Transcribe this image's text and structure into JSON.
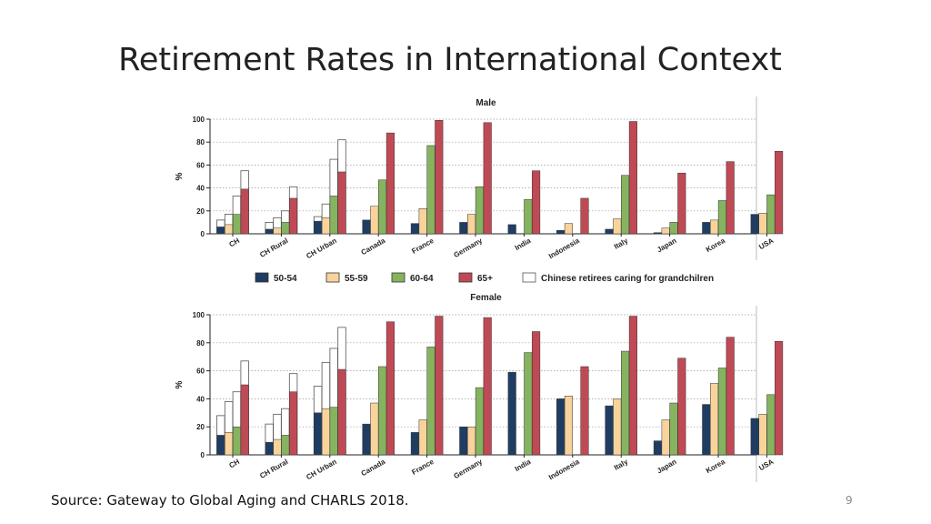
{
  "slide": {
    "title": "Retirement Rates in International Context",
    "source": "Source: Gateway to Global Aging and CHARLS 2018.",
    "page_number": "9"
  },
  "colors": {
    "50-54": "#1f3d63",
    "55-59": "#f8d39c",
    "60-64": "#86b35f",
    "65+": "#bf4a55",
    "caring": "#ffffff"
  },
  "legend": [
    {
      "key": "50-54",
      "label": "50-54"
    },
    {
      "key": "55-59",
      "label": "55-59"
    },
    {
      "key": "60-64",
      "label": "60-64"
    },
    {
      "key": "65+",
      "label": "65+"
    },
    {
      "key": "caring",
      "label": "Chinese retirees caring for grandchilren"
    }
  ],
  "chart_data": [
    {
      "type": "bar",
      "title": "Male",
      "ylabel": "%",
      "ylim": [
        0,
        100
      ],
      "yticks": [
        "0",
        "20",
        "40",
        "60",
        "80",
        "100"
      ],
      "grid": true,
      "categories": [
        "CH",
        "CH Rural",
        "CH Urban",
        "Canada",
        "France",
        "Germany",
        "India",
        "Indonesia",
        "Italy",
        "Japan",
        "Korea",
        "USA"
      ],
      "series": [
        {
          "name": "50-54",
          "values": [
            6,
            4,
            11,
            12,
            9,
            10,
            8,
            3,
            4,
            1,
            10,
            17
          ]
        },
        {
          "name": "55-59",
          "values": [
            8,
            5,
            14,
            24,
            22,
            17,
            0,
            9,
            13,
            5,
            12,
            18
          ]
        },
        {
          "name": "60-64",
          "values": [
            17,
            10,
            33,
            47,
            77,
            41,
            30,
            0,
            51,
            10,
            29,
            34
          ]
        },
        {
          "name": "65+",
          "values": [
            39,
            31,
            54,
            88,
            99,
            97,
            55,
            31,
            98,
            53,
            63,
            72
          ]
        }
      ],
      "caring_series": {
        "name": "Chinese retirees caring for grandchilren",
        "values": [
          12,
          10,
          15,
          0,
          0,
          0,
          0,
          0,
          0,
          0,
          0,
          0,
          17,
          14,
          26,
          0,
          0,
          0,
          0,
          0,
          0,
          0,
          0,
          0,
          33,
          20,
          65,
          0,
          0,
          0,
          0,
          0,
          0,
          0,
          0,
          0,
          55,
          41,
          82,
          0,
          0,
          0,
          0,
          0,
          0,
          0,
          0,
          0
        ]
      },
      "caring": {
        "50-54": [
          12,
          10,
          15
        ],
        "55-59": [
          17,
          14,
          26
        ],
        "60-64": [
          33,
          20,
          65
        ],
        "65+": [
          55,
          41,
          82
        ]
      }
    },
    {
      "type": "bar",
      "title": "Female",
      "ylabel": "%",
      "ylim": [
        0,
        100
      ],
      "yticks": [
        "0",
        "20",
        "40",
        "60",
        "80",
        "100"
      ],
      "grid": true,
      "categories": [
        "CH",
        "CH Rural",
        "CH Urban",
        "Canada",
        "France",
        "Germany",
        "India",
        "Indonesia",
        "Italy",
        "Japan",
        "Korea",
        "USA"
      ],
      "series": [
        {
          "name": "50-54",
          "values": [
            14,
            9,
            30,
            22,
            16,
            20,
            59,
            40,
            35,
            10,
            36,
            26
          ]
        },
        {
          "name": "55-59",
          "values": [
            16,
            11,
            33,
            37,
            25,
            20,
            0,
            42,
            40,
            25,
            51,
            29
          ]
        },
        {
          "name": "60-64",
          "values": [
            20,
            14,
            34,
            63,
            77,
            48,
            73,
            0,
            74,
            37,
            62,
            43
          ]
        },
        {
          "name": "65+",
          "values": [
            50,
            45,
            61,
            95,
            99,
            98,
            88,
            63,
            99,
            69,
            84,
            81
          ]
        }
      ],
      "caring": {
        "50-54": [
          28,
          22,
          49
        ],
        "55-59": [
          38,
          29,
          66
        ],
        "60-64": [
          45,
          33,
          76
        ],
        "65+": [
          67,
          58,
          91
        ]
      }
    }
  ]
}
